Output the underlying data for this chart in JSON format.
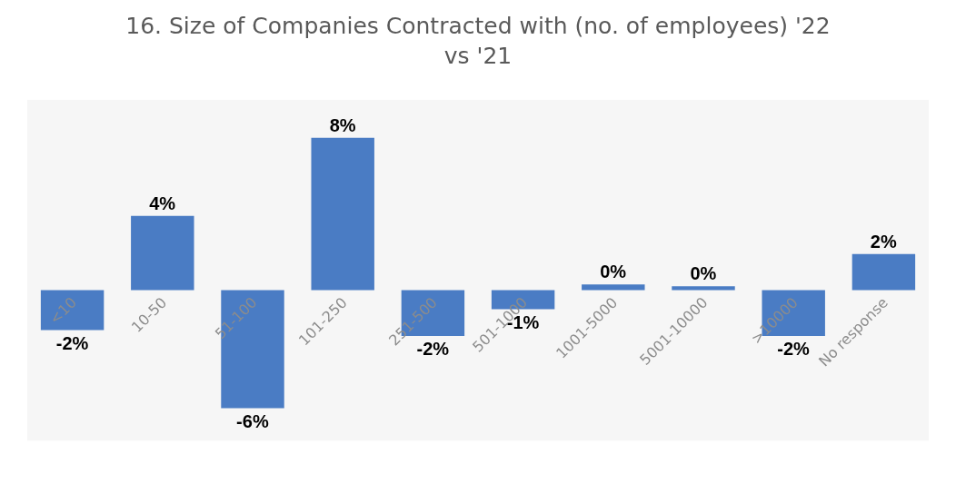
{
  "chart_data": {
    "type": "bar",
    "title": "16. Size of Companies Contracted with (no. of employees) '22 vs '21",
    "categories": [
      "<10",
      "10-50",
      "51-100",
      "101-250",
      "251-500",
      "501-1000",
      "1001-5000",
      "5001-10000",
      ">10000",
      "No response"
    ],
    "values": [
      -2.1,
      3.9,
      -6.2,
      8,
      -2.4,
      -1,
      0.3,
      0.2,
      -2.4,
      1.9
    ],
    "value_labels": [
      "-2%",
      "4%",
      "-6%",
      "8%",
      "-2%",
      "-1%",
      "0%",
      "0%",
      "-2%",
      "2%"
    ],
    "color": "#4a7cc4"
  }
}
